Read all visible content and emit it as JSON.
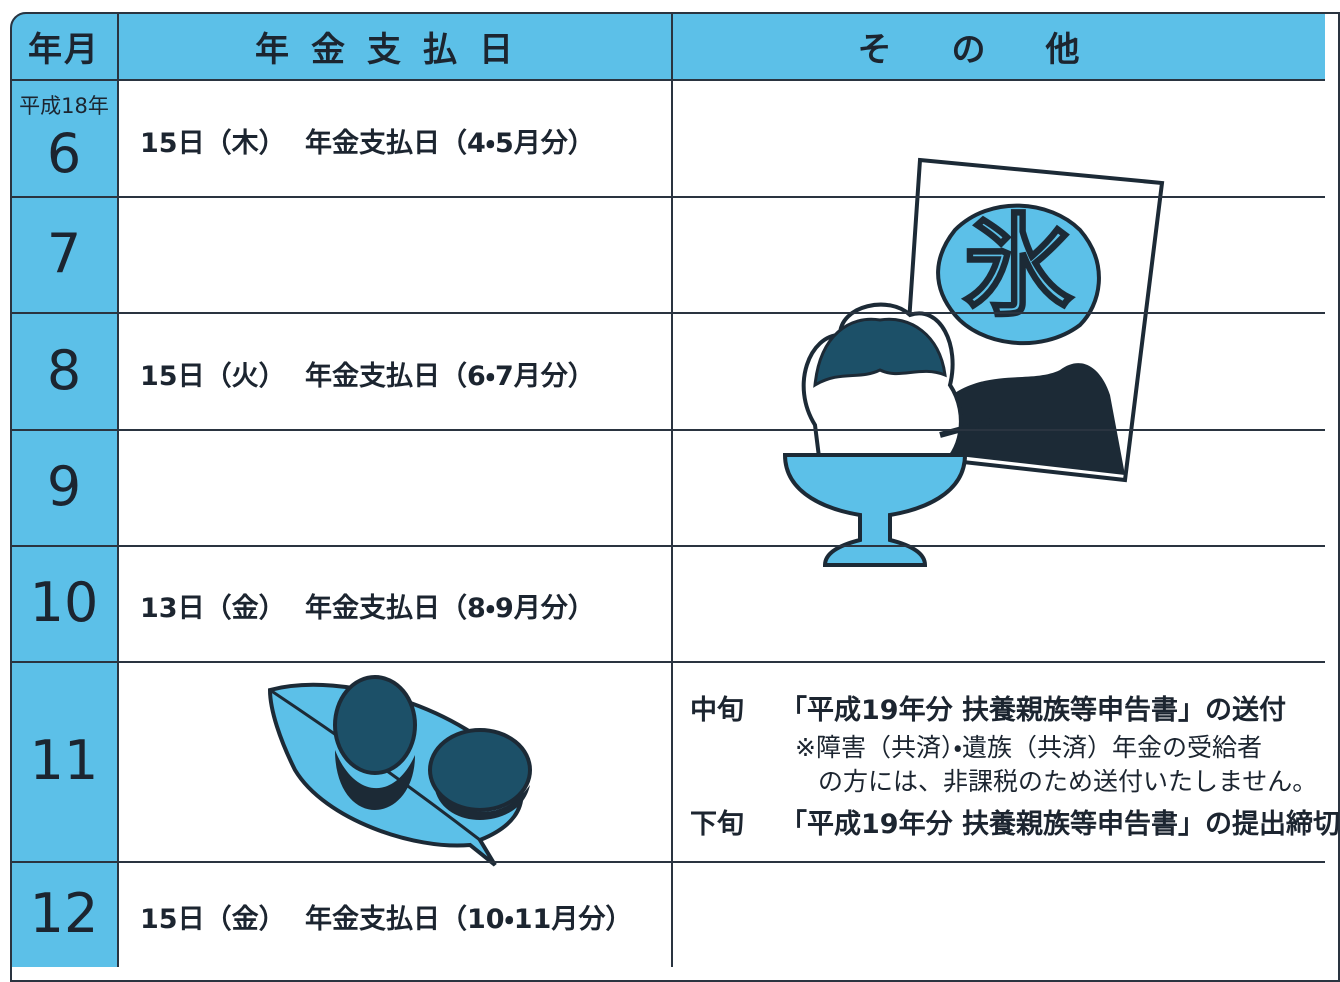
{
  "header": {
    "month": "年月",
    "pension": "年金支払日",
    "other": "その他"
  },
  "rows": [
    {
      "era": "平成18年",
      "month": "6",
      "date": "15日（木）",
      "pension": "年金支払日（4・5月分）"
    },
    {
      "month": "7"
    },
    {
      "month": "8",
      "date": "15日（火）",
      "pension": "年金支払日（6・7月分）"
    },
    {
      "month": "9"
    },
    {
      "month": "10",
      "date": "13日（金）",
      "pension": "年金支払日（8・9月分）"
    },
    {
      "month": "11"
    },
    {
      "month": "12",
      "date": "15日（金）",
      "pension": "年金支払日（10・11月分）"
    }
  ],
  "other": {
    "mid": {
      "period": "中旬",
      "text": "「平成19年分 扶養親族等申告書」の送付"
    },
    "note": [
      "※障害（共済）・遺族（共済）年金の受給者",
      "の方には、非課税のため送付いたしません。"
    ],
    "late": {
      "period": "下旬",
      "text": "「平成19年分 扶養親族等申告書」の提出締切"
    }
  },
  "illustration_label": "氷"
}
